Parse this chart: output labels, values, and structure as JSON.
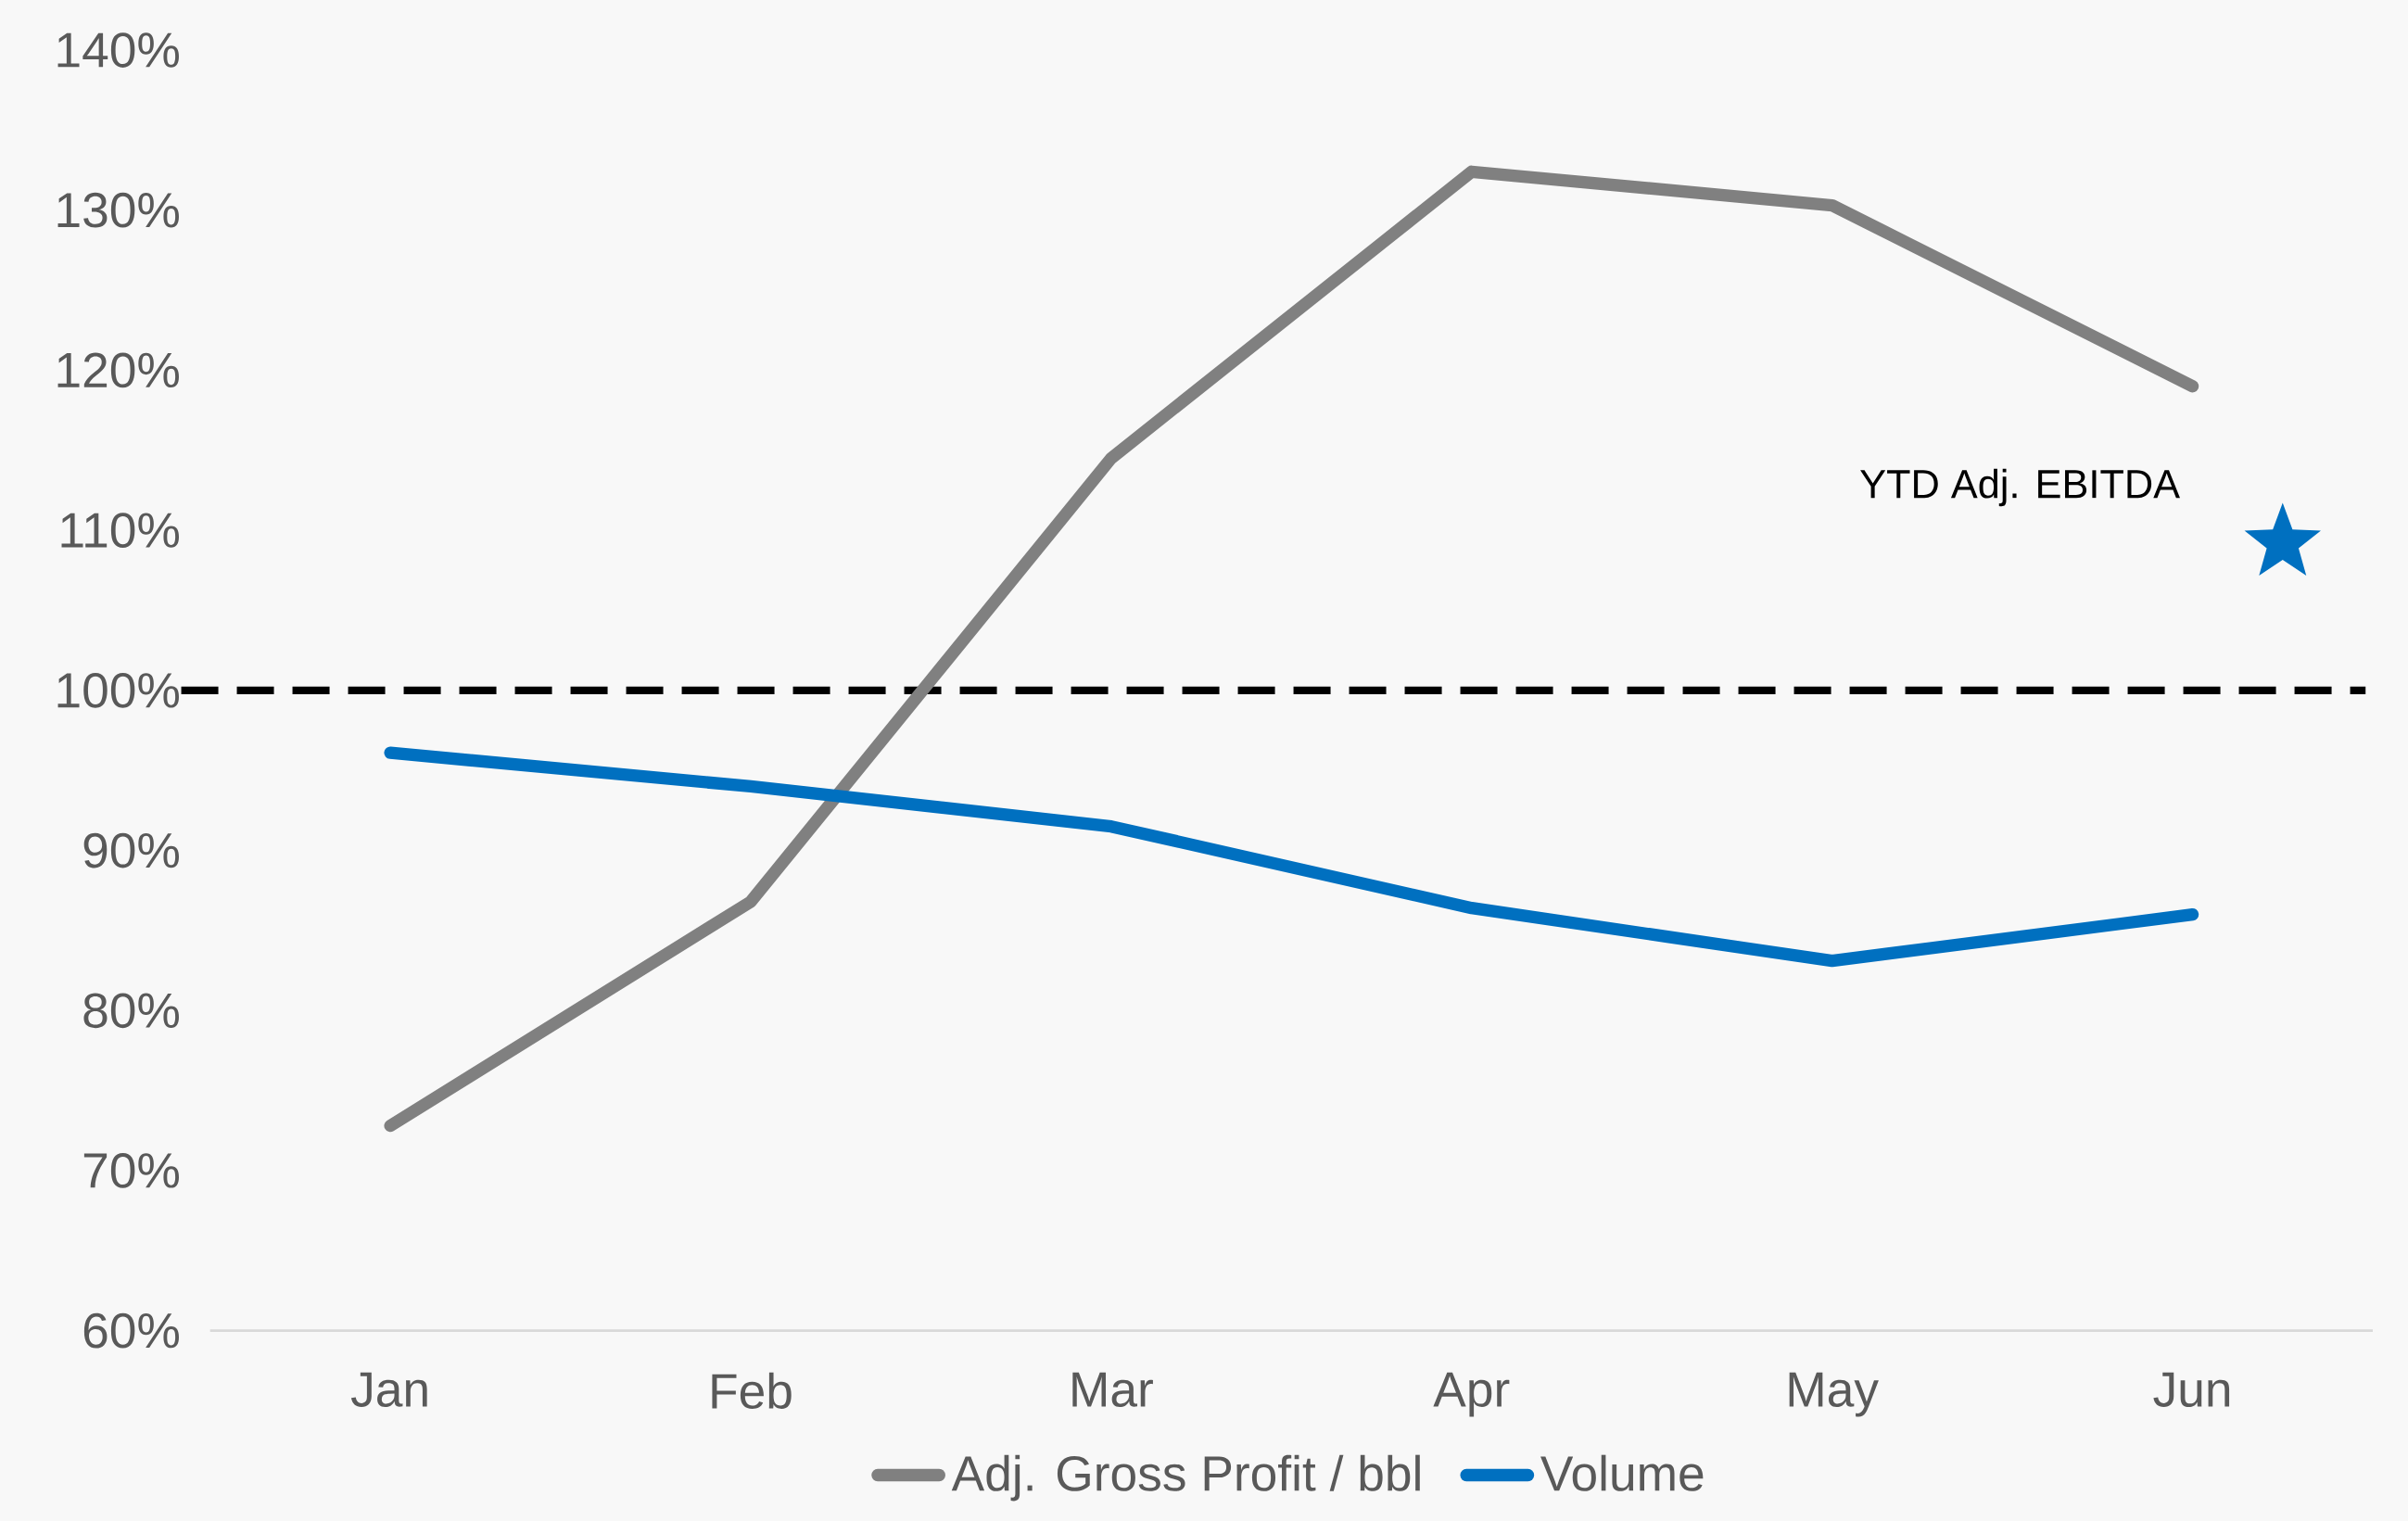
{
  "chart_data": {
    "type": "line",
    "categories": [
      "Jan",
      "Feb",
      "Mar",
      "Apr",
      "May",
      "Jun"
    ],
    "series": [
      {
        "name": "Adj. Gross Profit / bbl",
        "color": "#808080",
        "values": [
          72.8,
          86.8,
          114.5,
          132.4,
          130.3,
          119.0
        ]
      },
      {
        "name": "Volume",
        "color": "#0070c0",
        "values": [
          96.1,
          94.0,
          91.5,
          86.4,
          83.1,
          86.0
        ]
      },
      {
        "name": "YTD Adj. EBITDA",
        "type": "scatter",
        "marker": "star",
        "color": "#0070c0",
        "values": [
          null,
          null,
          null,
          null,
          null,
          109.2
        ]
      }
    ],
    "ylim": [
      60,
      140
    ],
    "yticks": [
      {
        "value": 60,
        "label": "60%"
      },
      {
        "value": 70,
        "label": "70%"
      },
      {
        "value": 80,
        "label": "80%"
      },
      {
        "value": 90,
        "label": "90%"
      },
      {
        "value": 100,
        "label": "100%"
      },
      {
        "value": 110,
        "label": "110%"
      },
      {
        "value": 120,
        "label": "120%"
      },
      {
        "value": 130,
        "label": "130%"
      },
      {
        "value": 140,
        "label": "140%"
      }
    ],
    "ref_lines": [
      {
        "axis": "y",
        "value": 100,
        "color": "#000000",
        "line_style": "dashed"
      }
    ],
    "legend": "bottom"
  }
}
